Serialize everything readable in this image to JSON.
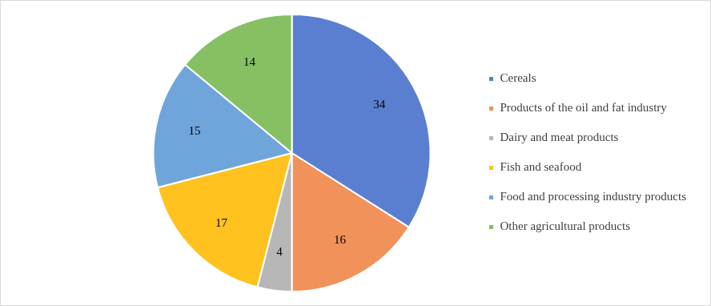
{
  "chart_data": {
    "type": "pie",
    "categories": [
      "Cereals",
      "Products of the oil and fat industry",
      "Dairy and meat products",
      "Fish and seafood",
      "Food and processing industry products",
      "Other agricultural products"
    ],
    "values": [
      34,
      16,
      4,
      17,
      15,
      14
    ],
    "colors": [
      "#5b7fd0",
      "#f0925a",
      "#b7b7b7",
      "#ffc21e",
      "#6fa5da",
      "#86c063"
    ],
    "legend": "right",
    "data_labels": true
  }
}
